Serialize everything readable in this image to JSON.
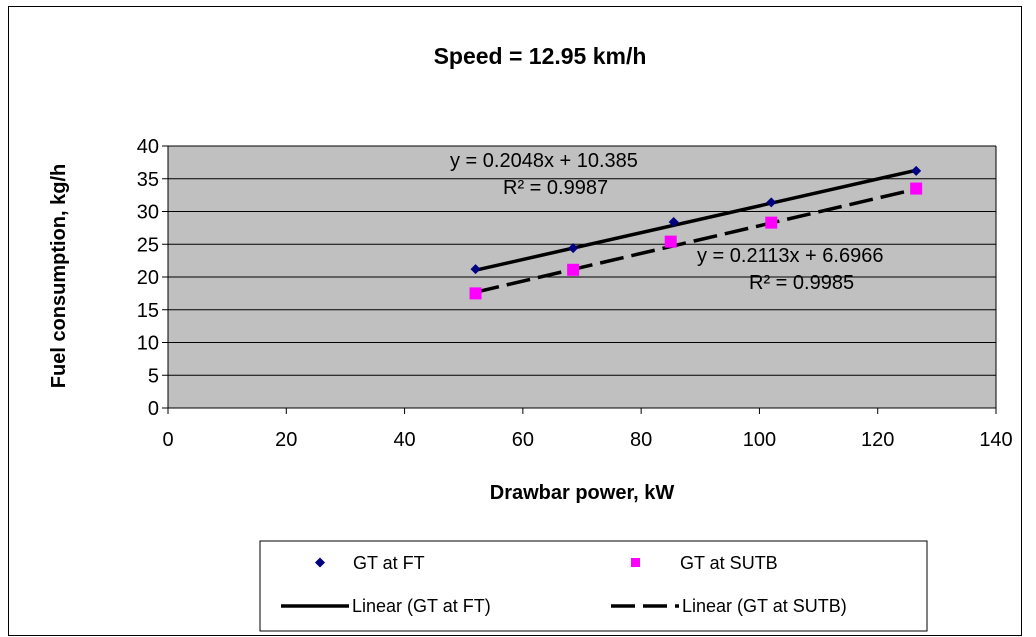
{
  "chart_data": {
    "type": "scatter",
    "title": "Speed = 12.95 km/h",
    "xlabel": "Drawbar power, kW",
    "ylabel": "Fuel consumption,  kg/h",
    "xlim": [
      0,
      140
    ],
    "ylim": [
      0,
      40
    ],
    "xticks": [
      0,
      20,
      40,
      60,
      80,
      100,
      120,
      140
    ],
    "yticks": [
      0,
      5,
      10,
      15,
      20,
      25,
      30,
      35,
      40
    ],
    "grid": "horizontal",
    "plot_background": "#c0c0c0",
    "series": [
      {
        "name": "GT at FT",
        "marker": "diamond",
        "color": "#000080",
        "x": [
          52,
          68.5,
          85.5,
          102,
          126.5
        ],
        "y": [
          21.2,
          24.4,
          28.4,
          31.4,
          36.2
        ]
      },
      {
        "name": "GT at SUTB",
        "marker": "square",
        "color": "#ff00ff",
        "x": [
          52,
          68.5,
          85,
          102,
          126.5
        ],
        "y": [
          17.5,
          21.1,
          25.4,
          28.3,
          33.5
        ]
      }
    ],
    "trendlines": [
      {
        "name": "Linear (GT at FT)",
        "style": "solid",
        "slope": 0.2048,
        "intercept": 10.385,
        "x_range": [
          52,
          126.5
        ],
        "equation": "y = 0.2048x + 10.385",
        "r2": "R² = 0.9987"
      },
      {
        "name": "Linear (GT at SUTB)",
        "style": "dashed",
        "slope": 0.2113,
        "intercept": 6.6966,
        "x_range": [
          52,
          126.5
        ],
        "equation": "y = 0.2113x + 6.6966",
        "r2": "R² = 0.9985"
      }
    ],
    "legend_position": "bottom"
  }
}
